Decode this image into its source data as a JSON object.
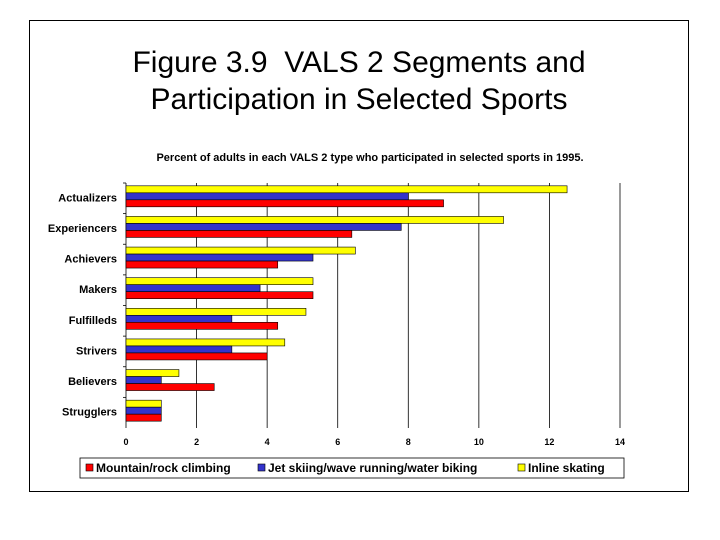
{
  "slide": {
    "title_line1": "Figure 3.9  VALS 2 Segments and",
    "title_line2": "Participation in Selected Sports"
  },
  "colors": {
    "mountain": "#ff0000",
    "jet": "#3333cc",
    "inline": "#ffff00",
    "outline": "#000000",
    "grid": "#000000"
  },
  "chart_data": {
    "type": "bar",
    "orientation": "horizontal",
    "title": "Percent of adults in each VALS 2 type who participated in selected sports in 1995.",
    "xlabel": "",
    "ylabel": "",
    "xlim": [
      0,
      14
    ],
    "xticks": [
      0,
      2,
      4,
      6,
      8,
      10,
      12,
      14
    ],
    "grid": "vertical",
    "legend_position": "bottom",
    "categories": [
      "Actualizers",
      "Experiencers",
      "Achievers",
      "Makers",
      "Fulfilleds",
      "Strivers",
      "Believers",
      "Strugglers"
    ],
    "series": [
      {
        "name": "Inline skating",
        "color": "#ffff00",
        "values": [
          12.5,
          10.7,
          6.5,
          5.3,
          5.1,
          4.5,
          1.5,
          1.0
        ]
      },
      {
        "name": "Jet skiing/wave running/water biking",
        "color": "#3333cc",
        "values": [
          8.0,
          7.8,
          5.3,
          3.8,
          3.0,
          3.0,
          1.0,
          1.0
        ]
      },
      {
        "name": "Mountain/rock climbing",
        "color": "#ff0000",
        "values": [
          9.0,
          6.4,
          4.3,
          5.3,
          4.3,
          4.0,
          2.5,
          1.0
        ]
      }
    ],
    "legend_order": [
      "Mountain/rock climbing",
      "Jet skiing/wave running/water biking",
      "Inline skating"
    ]
  }
}
